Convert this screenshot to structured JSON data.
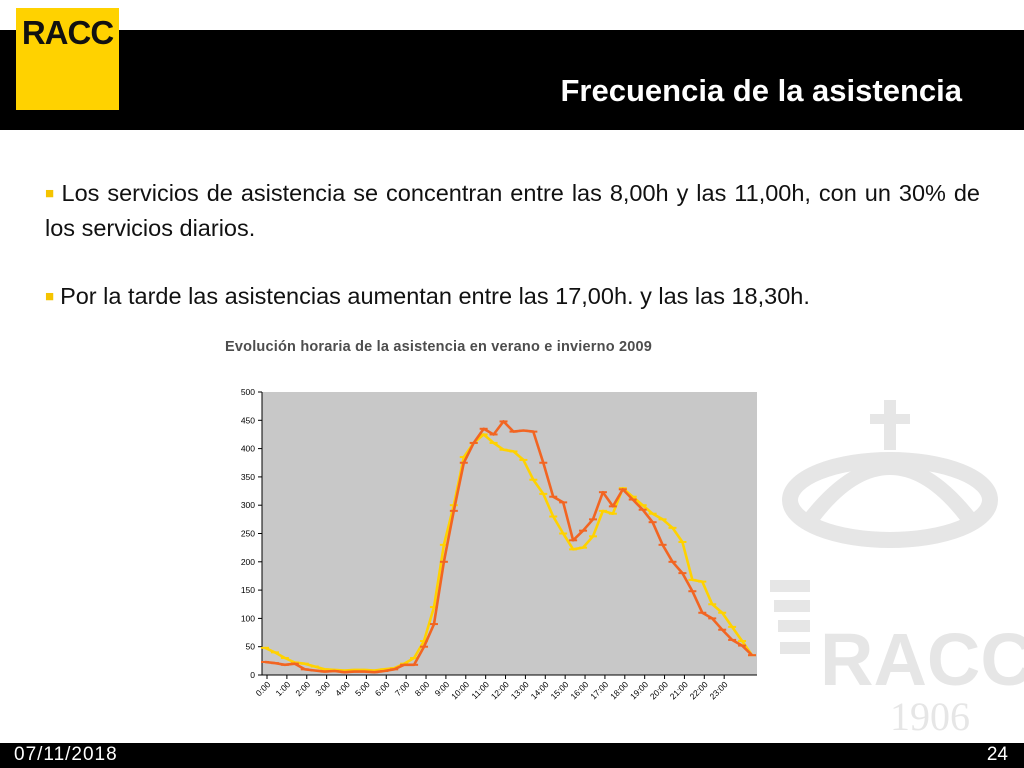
{
  "header": {
    "logo_text": "RACC",
    "title": "Frecuencia de la asistencia"
  },
  "bullets": [
    "Los servicios de asistencia se concentran entre las 8,00h y las 11,00h, con un 30% de los servicios diarios.",
    "Por la tarde las asistencias aumentan entre las 17,00h. y las las 18,30h."
  ],
  "watermark": {
    "text": "RACC",
    "year": "1906"
  },
  "footer": {
    "date": "07/11/2018",
    "page": "24"
  },
  "colors": {
    "logo_yellow": "#ffd200",
    "bullet_yellow": "#f5c400",
    "series_orange": "#f26522",
    "series_yellow": "#ffd200",
    "plot_bg": "#c8c8c8"
  },
  "chart_data": {
    "type": "line",
    "title": "Evolución horaria de la asistencia en verano e invierno 2009",
    "xlabel": "",
    "ylabel": "",
    "ylim": [
      0,
      500
    ],
    "yticks": [
      0,
      50,
      100,
      150,
      200,
      250,
      300,
      350,
      400,
      450,
      500
    ],
    "x_tick_labels": [
      "0:00",
      "1:00",
      "2:00",
      "3:00",
      "4:00",
      "5:00",
      "6:00",
      "7:00",
      "8:00",
      "9:00",
      "10:00",
      "11:00",
      "12:00",
      "13:00",
      "14:00",
      "15:00",
      "16:00",
      "17:00",
      "18:00",
      "19:00",
      "20:00",
      "21:00",
      "22:00",
      "23:00"
    ],
    "x_points_per_hour": 2,
    "series": [
      {
        "color": "#f26522",
        "values": [
          23,
          21,
          18,
          20,
          10,
          8,
          6,
          7,
          5,
          6,
          6,
          5,
          7,
          10,
          18,
          18,
          50,
          90,
          200,
          290,
          375,
          410,
          435,
          425,
          448,
          430,
          432,
          430,
          375,
          315,
          305,
          238,
          255,
          275,
          323,
          298,
          328,
          310,
          292,
          270,
          230,
          200,
          180,
          148,
          110,
          100,
          80,
          62,
          52,
          35
        ]
      },
      {
        "color": "#ffd200",
        "values": [
          48,
          40,
          30,
          22,
          20,
          15,
          10,
          9,
          8,
          9,
          9,
          8,
          10,
          12,
          20,
          30,
          60,
          120,
          230,
          300,
          385,
          410,
          425,
          410,
          398,
          395,
          380,
          345,
          320,
          280,
          250,
          222,
          225,
          245,
          290,
          285,
          330,
          315,
          300,
          285,
          275,
          260,
          235,
          168,
          165,
          125,
          110,
          85,
          60,
          35
        ]
      }
    ]
  }
}
